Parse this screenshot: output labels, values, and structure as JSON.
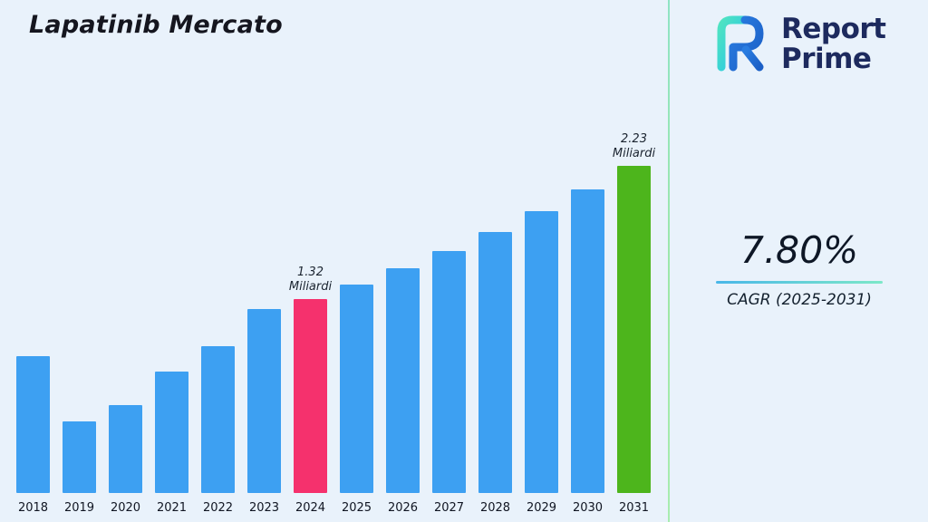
{
  "page": {
    "title": "Lapatinib Mercato"
  },
  "brand": {
    "name_line1": "Report",
    "name_line2": "Prime"
  },
  "kpi": {
    "value": "7.80%",
    "label": "CAGR (2025-2031)"
  },
  "chart_data": {
    "type": "bar",
    "title": "Lapatinib Mercato",
    "unit": "Miliardi",
    "categories": [
      "2018",
      "2019",
      "2020",
      "2021",
      "2022",
      "2023",
      "2024",
      "2025",
      "2026",
      "2027",
      "2028",
      "2029",
      "2030",
      "2031"
    ],
    "values": [
      0.93,
      0.49,
      0.6,
      0.83,
      1.0,
      1.25,
      1.32,
      1.42,
      1.53,
      1.65,
      1.78,
      1.92,
      2.07,
      2.23
    ],
    "annotations": [
      {
        "index": 6,
        "lines": [
          "1.32",
          "Miliardi"
        ]
      },
      {
        "index": 13,
        "lines": [
          "2.23",
          "Miliardi"
        ]
      }
    ],
    "colors": {
      "default": "#3da0f2",
      "highlight": "#f5316d",
      "forecast": "#4db51c"
    },
    "bar_colors": {
      "6": "highlight",
      "13": "forecast"
    },
    "ylim": [
      0,
      2.4
    ],
    "grid": false,
    "legend": null,
    "xlabel": "",
    "ylabel": ""
  }
}
